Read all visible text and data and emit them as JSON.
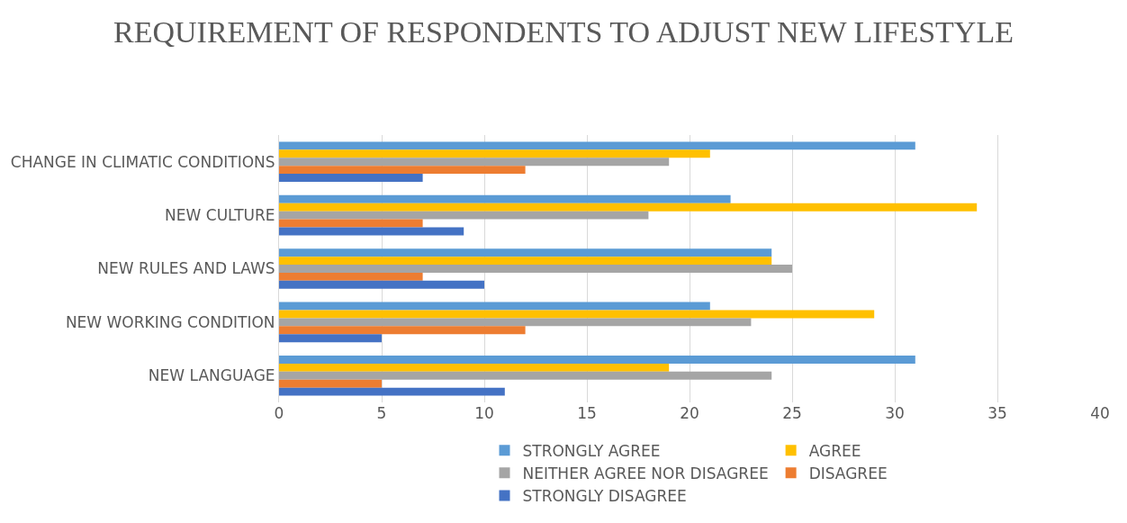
{
  "chart_data": {
    "type": "bar",
    "orientation": "horizontal",
    "title": "REQUIREMENT OF RESPONDENTS TO ADJUST NEW LIFESTYLE",
    "categories": [
      "CHANGE IN CLIMATIC CONDITIONS",
      "NEW CULTURE",
      "NEW RULES AND LAWS",
      "NEW WORKING CONDITION",
      "NEW LANGUAGE"
    ],
    "series": [
      {
        "name": "STRONGLY AGREE",
        "color": "#5b9bd5",
        "values": [
          31,
          22,
          24,
          21,
          31
        ]
      },
      {
        "name": "AGREE",
        "color": "#ffc000",
        "values": [
          21,
          34,
          24,
          29,
          19
        ]
      },
      {
        "name": "NEITHER AGREE NOR DISAGREE",
        "color": "#a5a5a5",
        "values": [
          19,
          18,
          25,
          23,
          24
        ]
      },
      {
        "name": "DISAGREE",
        "color": "#ed7d31",
        "values": [
          12,
          7,
          7,
          12,
          5
        ]
      },
      {
        "name": "STRONGLY DISAGREE",
        "color": "#4472c4",
        "values": [
          7,
          9,
          10,
          5,
          11
        ]
      }
    ],
    "xlim": [
      0,
      40
    ],
    "xticks": [
      0,
      5,
      10,
      15,
      20,
      25,
      30,
      35,
      40
    ],
    "grid": "x",
    "legend": "bottom"
  }
}
